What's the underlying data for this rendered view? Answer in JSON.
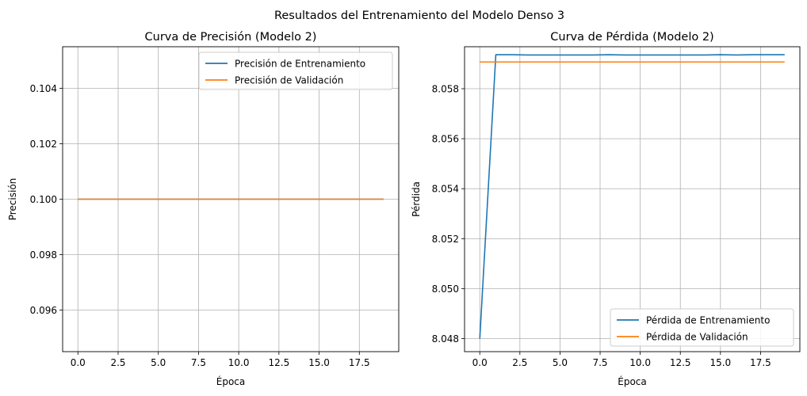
{
  "figure": {
    "suptitle": "Resultados del Entrenamiento del Modelo Denso 3"
  },
  "chart_data": [
    {
      "type": "line",
      "title": "Curva de Precisión (Modelo 2)",
      "xlabel": "Época",
      "ylabel": "Precisión",
      "xlim": [
        -0.95,
        19.95
      ],
      "ylim": [
        0.0945,
        0.1055
      ],
      "xticks": [
        0.0,
        2.5,
        5.0,
        7.5,
        10.0,
        12.5,
        15.0,
        17.5
      ],
      "xtick_labels": [
        "0.0",
        "2.5",
        "5.0",
        "7.5",
        "10.0",
        "12.5",
        "15.0",
        "17.5"
      ],
      "yticks": [
        0.096,
        0.098,
        0.1,
        0.102,
        0.104
      ],
      "ytick_labels": [
        "0.096",
        "0.098",
        "0.100",
        "0.102",
        "0.104"
      ],
      "grid": true,
      "legend": "top-right",
      "x": [
        0,
        1,
        2,
        3,
        4,
        5,
        6,
        7,
        8,
        9,
        10,
        11,
        12,
        13,
        14,
        15,
        16,
        17,
        18,
        19
      ],
      "series": [
        {
          "name": "Precisión de Entrenamiento",
          "color": "#1f77b4",
          "values": [
            0.1,
            0.1,
            0.1,
            0.1,
            0.1,
            0.1,
            0.1,
            0.1,
            0.1,
            0.1,
            0.1,
            0.1,
            0.1,
            0.1,
            0.1,
            0.1,
            0.1,
            0.1,
            0.1,
            0.1
          ]
        },
        {
          "name": "Precisión de Validación",
          "color": "#ff7f0e",
          "values": [
            0.1,
            0.1,
            0.1,
            0.1,
            0.1,
            0.1,
            0.1,
            0.1,
            0.1,
            0.1,
            0.1,
            0.1,
            0.1,
            0.1,
            0.1,
            0.1,
            0.1,
            0.1,
            0.1,
            0.1
          ]
        }
      ]
    },
    {
      "type": "line",
      "title": "Curva de Pérdida (Modelo 2)",
      "xlabel": "Época",
      "ylabel": "Pérdida",
      "xlim": [
        -0.95,
        19.95
      ],
      "ylim": [
        8.04748,
        8.05968
      ],
      "xticks": [
        0.0,
        2.5,
        5.0,
        7.5,
        10.0,
        12.5,
        15.0,
        17.5
      ],
      "xtick_labels": [
        "0.0",
        "2.5",
        "5.0",
        "7.5",
        "10.0",
        "12.5",
        "15.0",
        "17.5"
      ],
      "yticks": [
        8.048,
        8.05,
        8.052,
        8.054,
        8.056,
        8.058
      ],
      "ytick_labels": [
        "8.048",
        "8.050",
        "8.052",
        "8.054",
        "8.056",
        "8.058"
      ],
      "grid": true,
      "legend": "bottom-right",
      "x": [
        0,
        1,
        2,
        3,
        4,
        5,
        6,
        7,
        8,
        9,
        10,
        11,
        12,
        13,
        14,
        15,
        16,
        17,
        18,
        19
      ],
      "series": [
        {
          "name": "Pérdida de Entrenamiento",
          "color": "#1f77b4",
          "values": [
            8.048,
            8.05936,
            8.05936,
            8.05935,
            8.05935,
            8.05935,
            8.05935,
            8.05935,
            8.05936,
            8.05935,
            8.05935,
            8.05935,
            8.05935,
            8.05935,
            8.05935,
            8.05936,
            8.05935,
            8.05936,
            8.05936,
            8.05936
          ]
        },
        {
          "name": "Pérdida de Validación",
          "color": "#ff7f0e",
          "values": [
            8.05907,
            8.05907,
            8.05907,
            8.05907,
            8.05907,
            8.05907,
            8.05907,
            8.05907,
            8.05907,
            8.05907,
            8.05907,
            8.05907,
            8.05907,
            8.05907,
            8.05907,
            8.05907,
            8.05907,
            8.05907,
            8.05907,
            8.05907
          ]
        }
      ]
    }
  ]
}
